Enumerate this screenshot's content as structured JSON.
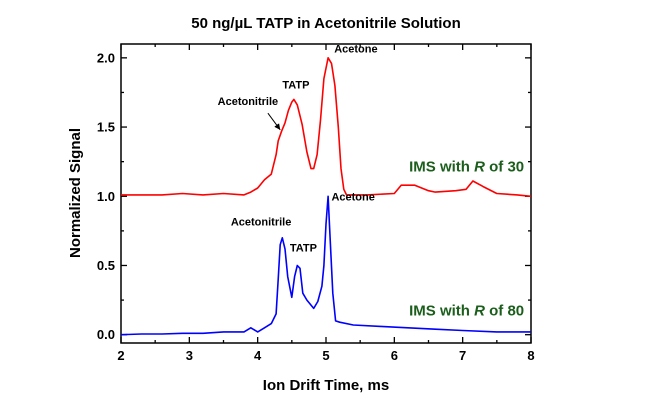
{
  "chart_data": {
    "type": "line",
    "title": "50 ng/µL TATP in Acetonitrile Solution",
    "xlabel": "Ion Drift Time, ms",
    "ylabel": "Normalized Signal",
    "xlim": [
      2,
      8
    ],
    "ylim": [
      -0.06,
      2.1
    ],
    "xticks": [
      "2",
      "3",
      "4",
      "5",
      "6",
      "7",
      "8"
    ],
    "xtick_values": [
      2,
      3,
      4,
      5,
      6,
      7,
      8
    ],
    "yticks": [
      "0.0",
      "0.5",
      "1.0",
      "1.5",
      "2.0"
    ],
    "ytick_values": [
      0,
      0.5,
      1,
      1.5,
      2
    ],
    "grid": false,
    "series": [
      {
        "name": "IMS with R of 30",
        "color": "#ff0000",
        "x": [
          2.0,
          2.3,
          2.6,
          2.9,
          3.2,
          3.5,
          3.8,
          3.9,
          4.0,
          4.1,
          4.2,
          4.27,
          4.3,
          4.35,
          4.4,
          4.45,
          4.5,
          4.53,
          4.58,
          4.65,
          4.72,
          4.78,
          4.82,
          4.87,
          4.92,
          4.97,
          5.03,
          5.08,
          5.13,
          5.18,
          5.22,
          5.26,
          5.3,
          5.6,
          6.0,
          6.1,
          6.3,
          6.5,
          6.6,
          6.9,
          7.05,
          7.15,
          7.3,
          7.5,
          7.8,
          8.0
        ],
        "y": [
          1.01,
          1.01,
          1.01,
          1.02,
          1.01,
          1.02,
          1.01,
          1.03,
          1.06,
          1.12,
          1.16,
          1.3,
          1.4,
          1.47,
          1.53,
          1.62,
          1.68,
          1.7,
          1.66,
          1.52,
          1.32,
          1.2,
          1.2,
          1.3,
          1.55,
          1.85,
          2.0,
          1.96,
          1.8,
          1.5,
          1.2,
          1.05,
          1.01,
          1.01,
          1.02,
          1.08,
          1.08,
          1.04,
          1.03,
          1.04,
          1.05,
          1.11,
          1.07,
          1.02,
          1.01,
          1.0
        ]
      },
      {
        "name": "IMS with R of 80",
        "color": "#0000ff",
        "x": [
          2.0,
          2.3,
          2.6,
          2.9,
          3.2,
          3.5,
          3.8,
          3.9,
          4.0,
          4.1,
          4.2,
          4.27,
          4.3,
          4.33,
          4.36,
          4.4,
          4.44,
          4.5,
          4.54,
          4.58,
          4.62,
          4.66,
          4.72,
          4.82,
          4.88,
          4.94,
          4.97,
          5.0,
          5.03,
          5.06,
          5.1,
          5.14,
          5.2,
          5.4,
          5.8,
          6.2,
          6.6,
          7.0,
          7.5,
          8.0
        ],
        "y": [
          0.0,
          0.005,
          0.005,
          0.01,
          0.01,
          0.02,
          0.02,
          0.05,
          0.02,
          0.05,
          0.08,
          0.15,
          0.4,
          0.65,
          0.7,
          0.62,
          0.42,
          0.27,
          0.42,
          0.5,
          0.48,
          0.3,
          0.25,
          0.19,
          0.24,
          0.35,
          0.5,
          0.8,
          1.0,
          0.7,
          0.3,
          0.1,
          0.09,
          0.07,
          0.06,
          0.05,
          0.04,
          0.03,
          0.02,
          0.02
        ]
      }
    ],
    "annotations": [
      {
        "text": "Acetone",
        "x": 5.12,
        "y": 2.04,
        "anchor": "start"
      },
      {
        "text": "TATP",
        "x": 4.56,
        "y": 1.78,
        "anchor": "middle"
      },
      {
        "text": "Acetonitrile",
        "x": 4.3,
        "y": 1.66,
        "anchor": "end"
      },
      {
        "text": "Acetone",
        "x": 5.08,
        "y": 0.97,
        "anchor": "start"
      },
      {
        "text": "Acetonitrile",
        "x": 4.05,
        "y": 0.79,
        "anchor": "middle"
      },
      {
        "text": "TATP",
        "x": 4.67,
        "y": 0.6,
        "anchor": "middle"
      }
    ],
    "arrow": {
      "from": [
        4.15,
        1.6
      ],
      "to": [
        4.33,
        1.48
      ]
    },
    "legend_labels": [
      {
        "prefix": "IMS with ",
        "italic": "R",
        "suffix": " of 30",
        "x": 7.9,
        "y": 1.18
      },
      {
        "prefix": "IMS with ",
        "italic": "R",
        "suffix": " of 80",
        "x": 7.9,
        "y": 0.14
      }
    ]
  }
}
